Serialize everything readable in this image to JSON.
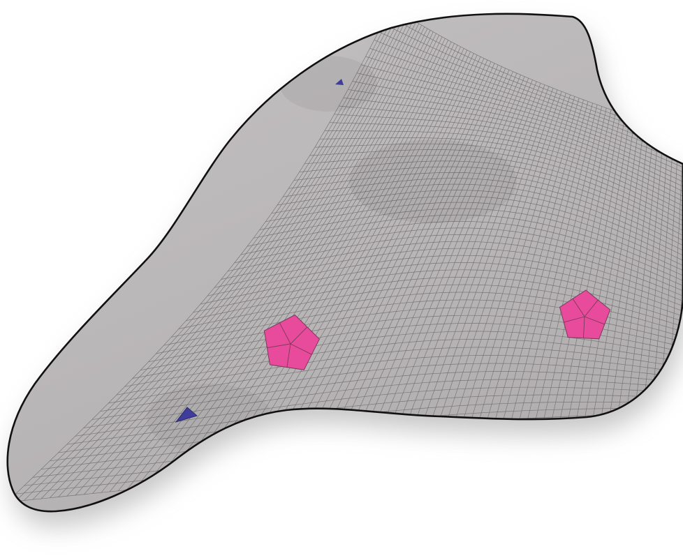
{
  "figure": {
    "surface_fill": "#bab7b8",
    "grid_line_color": "#6f6c6e",
    "outline_color": "#111111",
    "pentagon_color": "#e84b9b",
    "pentagon_edge_color": "#7a3a5a",
    "triangle_color": "#3f3c9a",
    "shadow_color": "#9a9a9a",
    "singularities": [
      {
        "kind": "valence-5",
        "color_name": "pink-pentagon"
      },
      {
        "kind": "valence-5",
        "color_name": "pink-pentagon"
      },
      {
        "kind": "valence-3",
        "color_name": "blue-triangle"
      },
      {
        "kind": "valence-3",
        "color_name": "blue-triangle"
      }
    ]
  }
}
